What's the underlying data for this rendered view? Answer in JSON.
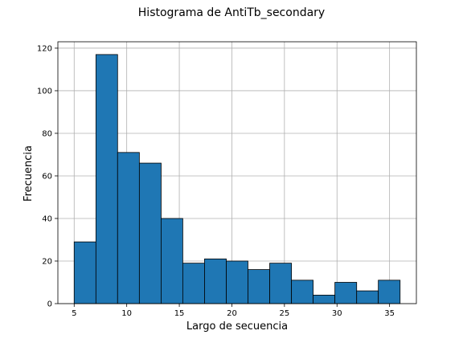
{
  "chart_data": {
    "type": "bar",
    "title": "Histograma de AntiTb_secondary",
    "xlabel": "Largo de secuencia",
    "ylabel": "Frecuencia",
    "bar_color": "#1f77b4",
    "edge_color": "#000000",
    "grid": true,
    "xlim": [
      3.45,
      37.55
    ],
    "ylim": [
      0,
      123
    ],
    "xticks": [
      5,
      10,
      15,
      20,
      25,
      30,
      35
    ],
    "yticks": [
      0,
      20,
      40,
      60,
      80,
      100,
      120
    ],
    "bins": [
      {
        "x0": 5.0,
        "x1": 7.07,
        "value": 29
      },
      {
        "x0": 7.07,
        "x1": 9.13,
        "value": 117
      },
      {
        "x0": 9.13,
        "x1": 11.2,
        "value": 71
      },
      {
        "x0": 11.2,
        "x1": 13.27,
        "value": 66
      },
      {
        "x0": 13.27,
        "x1": 15.33,
        "value": 40
      },
      {
        "x0": 15.33,
        "x1": 17.4,
        "value": 19
      },
      {
        "x0": 17.4,
        "x1": 19.47,
        "value": 21
      },
      {
        "x0": 19.47,
        "x1": 21.53,
        "value": 20
      },
      {
        "x0": 21.53,
        "x1": 23.6,
        "value": 16
      },
      {
        "x0": 23.6,
        "x1": 25.67,
        "value": 19
      },
      {
        "x0": 25.67,
        "x1": 27.73,
        "value": 11
      },
      {
        "x0": 27.73,
        "x1": 29.8,
        "value": 4
      },
      {
        "x0": 29.8,
        "x1": 31.87,
        "value": 10
      },
      {
        "x0": 31.87,
        "x1": 33.93,
        "value": 6
      },
      {
        "x0": 33.93,
        "x1": 36.0,
        "value": 11
      }
    ]
  }
}
